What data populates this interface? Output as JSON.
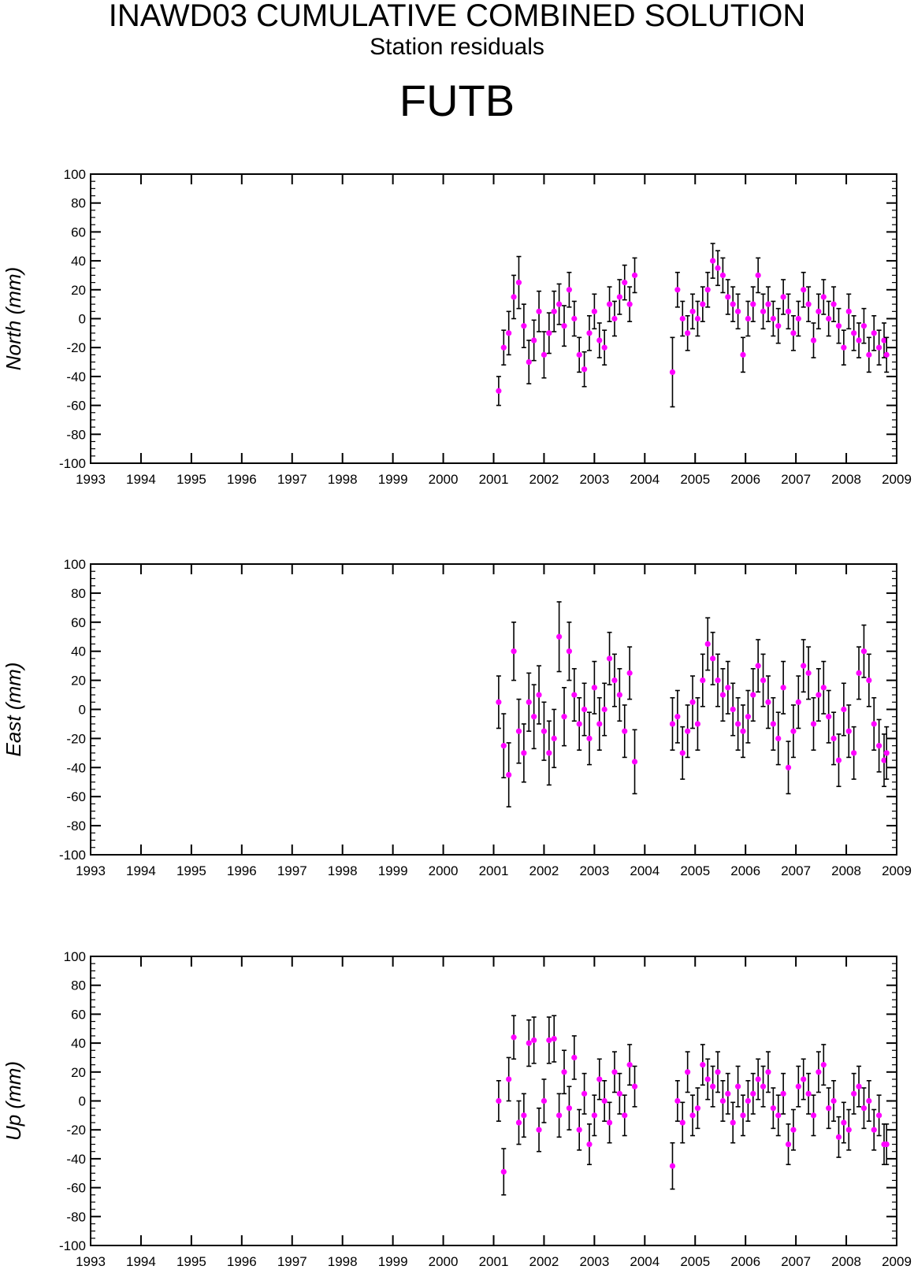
{
  "header": {
    "title": "INAWD03 CUMULATIVE COMBINED SOLUTION",
    "subtitle": "Station residuals",
    "station": "FUTB"
  },
  "colors": {
    "marker": "#ff00ff",
    "errorbar": "#000000",
    "axis": "#000000"
  },
  "chart_data": [
    {
      "type": "scatter",
      "ylabel": "North (mm)",
      "xlim": [
        1993,
        2009
      ],
      "ylim": [
        -100,
        100
      ],
      "x_ticks": [
        1993,
        1994,
        1995,
        1996,
        1997,
        1998,
        1999,
        2000,
        2001,
        2002,
        2003,
        2004,
        2005,
        2006,
        2007,
        2008,
        2009
      ],
      "y_ticks": [
        -100,
        -80,
        -60,
        -40,
        -20,
        0,
        20,
        40,
        60,
        80,
        100
      ],
      "series": [
        {
          "x": [
            2001.1,
            2001.2,
            2001.3,
            2001.4,
            2001.5,
            2001.6,
            2001.7,
            2001.8,
            2001.9,
            2002.0,
            2002.1,
            2002.2,
            2002.3,
            2002.4,
            2002.5,
            2002.6,
            2002.7,
            2002.8,
            2002.9,
            2003.0,
            2003.1,
            2003.2,
            2003.3,
            2003.4,
            2003.5,
            2003.6,
            2003.7,
            2003.8,
            2004.55,
            2004.65,
            2004.75,
            2004.85,
            2004.95,
            2005.05,
            2005.15,
            2005.25,
            2005.35,
            2005.45,
            2005.55,
            2005.65,
            2005.75,
            2005.85,
            2005.95,
            2006.05,
            2006.15,
            2006.25,
            2006.35,
            2006.45,
            2006.55,
            2006.65,
            2006.75,
            2006.85,
            2006.95,
            2007.05,
            2007.15,
            2007.25,
            2007.35,
            2007.45,
            2007.55,
            2007.65,
            2007.75,
            2007.85,
            2007.95,
            2008.05,
            2008.15,
            2008.25,
            2008.35,
            2008.45,
            2008.55,
            2008.65,
            2008.75,
            2008.8
          ],
          "y": [
            -50,
            -20,
            -10,
            15,
            25,
            -5,
            -30,
            -15,
            5,
            -25,
            -10,
            5,
            10,
            -5,
            20,
            0,
            -25,
            -35,
            -10,
            5,
            -15,
            -20,
            10,
            0,
            15,
            25,
            10,
            30,
            -37,
            20,
            0,
            -10,
            5,
            0,
            10,
            20,
            40,
            35,
            30,
            15,
            10,
            5,
            -25,
            0,
            10,
            30,
            5,
            10,
            0,
            -5,
            15,
            5,
            -10,
            0,
            20,
            10,
            -15,
            5,
            15,
            0,
            10,
            -5,
            -20,
            5,
            -10,
            -15,
            -5,
            -25,
            -10,
            -20,
            -15,
            -25
          ],
          "err": [
            10,
            12,
            15,
            15,
            18,
            15,
            15,
            14,
            14,
            16,
            14,
            14,
            14,
            14,
            12,
            12,
            12,
            12,
            12,
            12,
            12,
            12,
            12,
            12,
            12,
            12,
            12,
            12,
            24,
            12,
            12,
            12,
            12,
            12,
            12,
            12,
            12,
            12,
            12,
            12,
            12,
            12,
            12,
            12,
            12,
            12,
            12,
            12,
            12,
            12,
            12,
            12,
            12,
            12,
            12,
            12,
            12,
            12,
            12,
            12,
            12,
            12,
            12,
            12,
            12,
            12,
            12,
            12,
            12,
            12,
            12,
            12
          ]
        }
      ]
    },
    {
      "type": "scatter",
      "ylabel": "East (mm)",
      "xlim": [
        1993,
        2009
      ],
      "ylim": [
        -100,
        100
      ],
      "x_ticks": [
        1993,
        1994,
        1995,
        1996,
        1997,
        1998,
        1999,
        2000,
        2001,
        2002,
        2003,
        2004,
        2005,
        2006,
        2007,
        2008,
        2009
      ],
      "y_ticks": [
        -100,
        -80,
        -60,
        -40,
        -20,
        0,
        20,
        40,
        60,
        80,
        100
      ],
      "series": [
        {
          "x": [
            2001.1,
            2001.2,
            2001.3,
            2001.4,
            2001.5,
            2001.6,
            2001.7,
            2001.8,
            2001.9,
            2002.0,
            2002.1,
            2002.2,
            2002.3,
            2002.4,
            2002.5,
            2002.6,
            2002.7,
            2002.8,
            2002.9,
            2003.0,
            2003.1,
            2003.2,
            2003.3,
            2003.4,
            2003.5,
            2003.6,
            2003.7,
            2003.8,
            2004.55,
            2004.65,
            2004.75,
            2004.85,
            2004.95,
            2005.05,
            2005.15,
            2005.25,
            2005.35,
            2005.45,
            2005.55,
            2005.65,
            2005.75,
            2005.85,
            2005.95,
            2006.05,
            2006.15,
            2006.25,
            2006.35,
            2006.45,
            2006.55,
            2006.65,
            2006.75,
            2006.85,
            2006.95,
            2007.05,
            2007.15,
            2007.25,
            2007.35,
            2007.45,
            2007.55,
            2007.65,
            2007.75,
            2007.85,
            2007.95,
            2008.05,
            2008.15,
            2008.25,
            2008.35,
            2008.45,
            2008.55,
            2008.65,
            2008.75,
            2008.8
          ],
          "y": [
            5,
            -25,
            -45,
            40,
            -15,
            -30,
            5,
            -5,
            10,
            -15,
            -30,
            -20,
            50,
            -5,
            40,
            10,
            -10,
            0,
            -20,
            15,
            -10,
            0,
            35,
            20,
            10,
            -15,
            25,
            -36,
            -10,
            -5,
            -30,
            -15,
            5,
            -10,
            20,
            45,
            35,
            20,
            10,
            15,
            0,
            -10,
            -15,
            -5,
            10,
            30,
            20,
            5,
            -10,
            -20,
            15,
            -40,
            -15,
            5,
            30,
            25,
            -10,
            10,
            15,
            -5,
            -20,
            -35,
            0,
            -15,
            -30,
            25,
            40,
            20,
            -10,
            -25,
            -35,
            -30
          ],
          "err": [
            18,
            22,
            22,
            20,
            22,
            20,
            20,
            22,
            20,
            20,
            22,
            20,
            24,
            20,
            20,
            18,
            18,
            18,
            18,
            18,
            18,
            18,
            18,
            18,
            18,
            18,
            18,
            22,
            18,
            18,
            18,
            18,
            18,
            18,
            18,
            18,
            18,
            18,
            18,
            18,
            18,
            18,
            18,
            18,
            18,
            18,
            18,
            18,
            18,
            18,
            18,
            18,
            18,
            18,
            18,
            18,
            18,
            18,
            18,
            18,
            18,
            18,
            18,
            18,
            18,
            18,
            18,
            18,
            18,
            18,
            18,
            18
          ]
        }
      ]
    },
    {
      "type": "scatter",
      "ylabel": "Up (mm)",
      "xlim": [
        1993,
        2009
      ],
      "ylim": [
        -100,
        100
      ],
      "x_ticks": [
        1993,
        1994,
        1995,
        1996,
        1997,
        1998,
        1999,
        2000,
        2001,
        2002,
        2003,
        2004,
        2005,
        2006,
        2007,
        2008,
        2009
      ],
      "y_ticks": [
        -100,
        -80,
        -60,
        -40,
        -20,
        0,
        20,
        40,
        60,
        80,
        100
      ],
      "series": [
        {
          "x": [
            2001.1,
            2001.2,
            2001.3,
            2001.4,
            2001.5,
            2001.6,
            2001.7,
            2001.8,
            2001.9,
            2002.0,
            2002.1,
            2002.2,
            2002.3,
            2002.4,
            2002.5,
            2002.6,
            2002.7,
            2002.8,
            2002.9,
            2003.0,
            2003.1,
            2003.2,
            2003.3,
            2003.4,
            2003.5,
            2003.6,
            2003.7,
            2003.8,
            2004.55,
            2004.65,
            2004.75,
            2004.85,
            2004.95,
            2005.05,
            2005.15,
            2005.25,
            2005.35,
            2005.45,
            2005.55,
            2005.65,
            2005.75,
            2005.85,
            2005.95,
            2006.05,
            2006.15,
            2006.25,
            2006.35,
            2006.45,
            2006.55,
            2006.65,
            2006.75,
            2006.85,
            2006.95,
            2007.05,
            2007.15,
            2007.25,
            2007.35,
            2007.45,
            2007.55,
            2007.65,
            2007.75,
            2007.85,
            2007.95,
            2008.05,
            2008.15,
            2008.25,
            2008.35,
            2008.45,
            2008.55,
            2008.65,
            2008.75,
            2008.8
          ],
          "y": [
            0,
            -49,
            15,
            44,
            -15,
            -10,
            40,
            42,
            -20,
            0,
            42,
            43,
            -10,
            20,
            -5,
            30,
            -20,
            5,
            -30,
            -10,
            15,
            0,
            -15,
            20,
            5,
            -10,
            25,
            10,
            -45,
            0,
            -15,
            20,
            -10,
            -5,
            25,
            15,
            10,
            20,
            0,
            5,
            -15,
            10,
            -10,
            0,
            5,
            15,
            10,
            20,
            -5,
            -10,
            5,
            -30,
            -20,
            10,
            15,
            5,
            -10,
            20,
            25,
            -5,
            0,
            -25,
            -15,
            -20,
            5,
            10,
            -5,
            0,
            -20,
            -10,
            -30,
            -30
          ],
          "err": [
            14,
            16,
            15,
            15,
            15,
            15,
            16,
            16,
            15,
            15,
            16,
            16,
            15,
            15,
            15,
            15,
            14,
            14,
            14,
            14,
            14,
            14,
            14,
            14,
            14,
            14,
            14,
            14,
            16,
            14,
            14,
            14,
            14,
            14,
            14,
            14,
            14,
            14,
            14,
            14,
            14,
            14,
            14,
            14,
            14,
            14,
            14,
            14,
            14,
            14,
            14,
            14,
            14,
            14,
            14,
            14,
            14,
            14,
            14,
            14,
            14,
            14,
            14,
            14,
            14,
            14,
            14,
            14,
            14,
            14,
            14,
            14
          ]
        }
      ]
    }
  ]
}
